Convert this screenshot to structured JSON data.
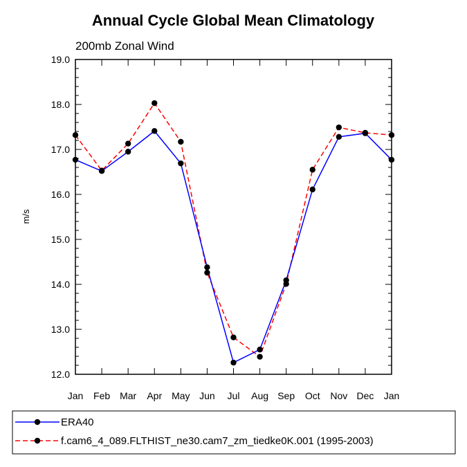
{
  "chart_data": {
    "type": "line",
    "title": "Annual Cycle Global Mean Climatology",
    "subtitle": "200mb Zonal Wind",
    "xlabel": "",
    "ylabel": "m/s",
    "categories": [
      "Jan",
      "Feb",
      "Mar",
      "Apr",
      "May",
      "Jun",
      "Jul",
      "Aug",
      "Sep",
      "Oct",
      "Nov",
      "Dec",
      "Jan"
    ],
    "ylim": [
      12.0,
      19.0
    ],
    "yticks": [
      "12.0",
      "13.0",
      "14.0",
      "15.0",
      "16.0",
      "17.0",
      "18.0",
      "19.0"
    ],
    "grid": false,
    "legend_position": "bottom",
    "series": [
      {
        "name": "ERA40",
        "color": "#0000ff",
        "line_style": "solid",
        "marker": "circle",
        "values": [
          16.77,
          16.52,
          16.95,
          17.41,
          16.69,
          14.38,
          12.26,
          12.55,
          14.09,
          16.11,
          17.28,
          17.36,
          16.77
        ]
      },
      {
        "name": "f.cam6_4_089.FLTHIST_ne30.cam7_zm_tiedke0K.001 (1995-2003)",
        "color": "#ff0000",
        "line_style": "dashed",
        "marker": "circle",
        "values": [
          17.32,
          16.53,
          17.13,
          18.03,
          17.17,
          14.26,
          12.82,
          12.39,
          14.01,
          16.55,
          17.49,
          17.37,
          17.32
        ]
      }
    ]
  }
}
